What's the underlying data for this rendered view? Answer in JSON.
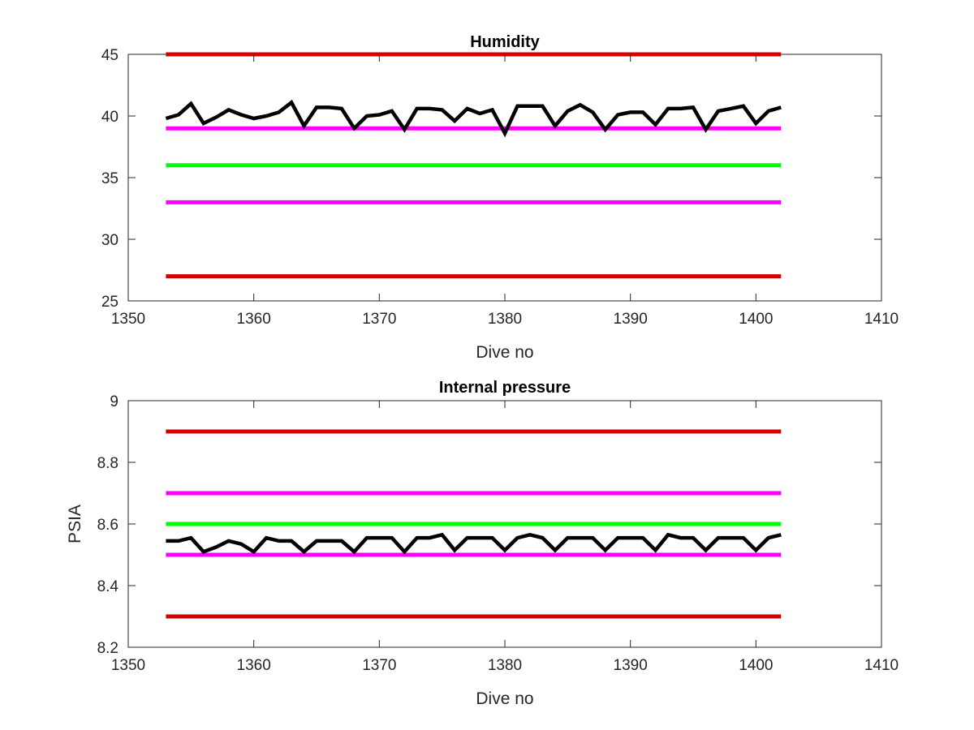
{
  "chart_data": [
    {
      "type": "line",
      "title": "Humidity",
      "xlabel": "Dive no",
      "ylabel": "",
      "xlim": [
        1350,
        1410
      ],
      "ylim": [
        25,
        45
      ],
      "xticks": [
        1350,
        1360,
        1370,
        1380,
        1390,
        1400,
        1410
      ],
      "yticks": [
        25,
        30,
        35,
        40,
        45
      ],
      "grid": false,
      "limit_lines": [
        {
          "y": 45,
          "x": [
            1353,
            1402
          ],
          "color": "#d40000"
        },
        {
          "y": 39,
          "x": [
            1353,
            1402
          ],
          "color": "#ff00ff"
        },
        {
          "y": 36,
          "x": [
            1353,
            1402
          ],
          "color": "#00ff00"
        },
        {
          "y": 33,
          "x": [
            1353,
            1402
          ],
          "color": "#ff00ff"
        },
        {
          "y": 27,
          "x": [
            1353,
            1402
          ],
          "color": "#d40000"
        }
      ],
      "series": [
        {
          "color": "#000000",
          "x": [
            1353,
            1354,
            1355,
            1356,
            1357,
            1358,
            1359,
            1360,
            1361,
            1362,
            1363,
            1364,
            1365,
            1366,
            1367,
            1368,
            1369,
            1370,
            1371,
            1372,
            1373,
            1374,
            1375,
            1376,
            1377,
            1378,
            1379,
            1380,
            1381,
            1382,
            1383,
            1384,
            1385,
            1386,
            1387,
            1388,
            1389,
            1390,
            1391,
            1392,
            1393,
            1394,
            1395,
            1396,
            1397,
            1398,
            1399,
            1400,
            1401,
            1402
          ],
          "values": [
            39.8,
            40.1,
            41.0,
            39.4,
            39.9,
            40.5,
            40.1,
            39.8,
            40.0,
            40.3,
            41.1,
            39.2,
            40.7,
            40.7,
            40.6,
            39.0,
            40.0,
            40.1,
            40.4,
            38.9,
            40.6,
            40.6,
            40.5,
            39.6,
            40.6,
            40.2,
            40.5,
            38.6,
            40.8,
            40.8,
            40.8,
            39.2,
            40.4,
            40.9,
            40.3,
            38.9,
            40.1,
            40.3,
            40.3,
            39.3,
            40.6,
            40.6,
            40.7,
            38.9,
            40.4,
            40.6,
            40.8,
            39.4,
            40.4,
            40.7
          ]
        }
      ]
    },
    {
      "type": "line",
      "title": "Internal pressure",
      "xlabel": "Dive no",
      "ylabel": "PSIA",
      "xlim": [
        1350,
        1410
      ],
      "ylim": [
        8.2,
        9.0
      ],
      "xticks": [
        1350,
        1360,
        1370,
        1380,
        1390,
        1400,
        1410
      ],
      "yticks": [
        8.2,
        8.4,
        8.6,
        8.8,
        9.0
      ],
      "ytick_labels": [
        "8.2",
        "8.4",
        "8.6",
        "8.8",
        "9"
      ],
      "grid": false,
      "limit_lines": [
        {
          "y": 8.9,
          "x": [
            1353,
            1402
          ],
          "color": "#d40000"
        },
        {
          "y": 8.7,
          "x": [
            1353,
            1402
          ],
          "color": "#ff00ff"
        },
        {
          "y": 8.6,
          "x": [
            1353,
            1402
          ],
          "color": "#00ff00"
        },
        {
          "y": 8.5,
          "x": [
            1353,
            1402
          ],
          "color": "#ff00ff"
        },
        {
          "y": 8.3,
          "x": [
            1353,
            1402
          ],
          "color": "#d40000"
        }
      ],
      "series": [
        {
          "color": "#000000",
          "x": [
            1353,
            1354,
            1355,
            1356,
            1357,
            1358,
            1359,
            1360,
            1361,
            1362,
            1363,
            1364,
            1365,
            1366,
            1367,
            1368,
            1369,
            1370,
            1371,
            1372,
            1373,
            1374,
            1375,
            1376,
            1377,
            1378,
            1379,
            1380,
            1381,
            1382,
            1383,
            1384,
            1385,
            1386,
            1387,
            1388,
            1389,
            1390,
            1391,
            1392,
            1393,
            1394,
            1395,
            1396,
            1397,
            1398,
            1399,
            1400,
            1401,
            1402
          ],
          "values": [
            8.545,
            8.545,
            8.555,
            8.51,
            8.525,
            8.545,
            8.535,
            8.51,
            8.555,
            8.545,
            8.545,
            8.51,
            8.545,
            8.545,
            8.545,
            8.51,
            8.555,
            8.555,
            8.555,
            8.51,
            8.555,
            8.555,
            8.565,
            8.515,
            8.555,
            8.555,
            8.555,
            8.515,
            8.555,
            8.565,
            8.555,
            8.515,
            8.555,
            8.555,
            8.555,
            8.515,
            8.555,
            8.555,
            8.555,
            8.515,
            8.565,
            8.555,
            8.555,
            8.515,
            8.555,
            8.555,
            8.555,
            8.515,
            8.555,
            8.565
          ]
        }
      ]
    }
  ]
}
